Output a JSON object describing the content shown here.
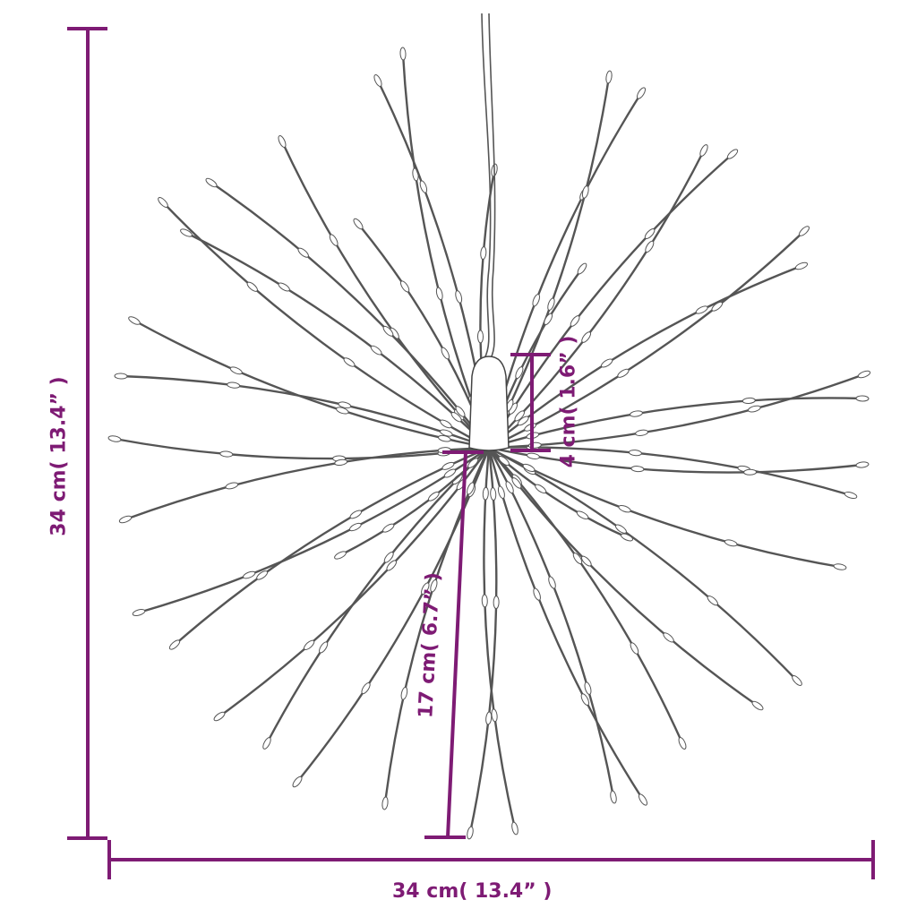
{
  "colors": {
    "dimension": "#7e1b74",
    "strand": "#555555",
    "bulb_outline": "#555555"
  },
  "dimensions": {
    "height": "34 cm( 13.4” )",
    "width": "34 cm( 13.4” )",
    "housing_height": "4 cm( 1.6” )",
    "strand_length": "17 cm( 6.7” )"
  }
}
